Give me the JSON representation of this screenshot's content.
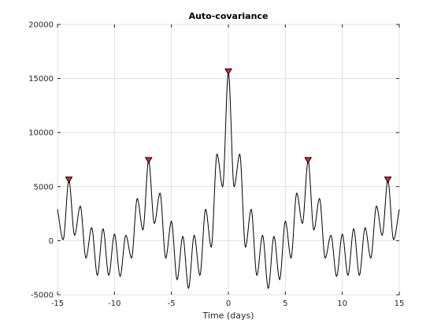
{
  "chart_data": {
    "type": "line",
    "title": "Auto-covariance",
    "xlabel": "Time (days)",
    "ylabel": "",
    "xlim": [
      -15,
      15
    ],
    "ylim": [
      -5000,
      20000
    ],
    "x_ticks": [
      -15,
      -10,
      -5,
      0,
      5,
      10,
      15
    ],
    "y_ticks": [
      -5000,
      0,
      5000,
      10000,
      15000,
      20000
    ],
    "x_tick_labels": [
      "-15",
      "-10",
      "-5",
      "0",
      "5",
      "10",
      "15"
    ],
    "y_tick_labels": [
      "-5000",
      "0",
      "5000",
      "10000",
      "15000",
      "20000"
    ],
    "grid": true,
    "series": [
      {
        "color": "#000000",
        "points": [
          [
            -15,
            2900
          ],
          [
            -14.5,
            100
          ],
          [
            -14,
            5600
          ],
          [
            -13.5,
            500
          ],
          [
            -13,
            3200
          ],
          [
            -12.5,
            -1600
          ],
          [
            -12,
            1200
          ],
          [
            -11.5,
            -3200
          ],
          [
            -11,
            1100
          ],
          [
            -10.5,
            -3200
          ],
          [
            -10,
            600
          ],
          [
            -9.5,
            -3300
          ],
          [
            -9,
            500
          ],
          [
            -8.5,
            -1600
          ],
          [
            -8,
            3900
          ],
          [
            -7.5,
            1000
          ],
          [
            -7,
            7400
          ],
          [
            -6.5,
            1600
          ],
          [
            -6,
            4400
          ],
          [
            -5.5,
            -1600
          ],
          [
            -5,
            1800
          ],
          [
            -4.5,
            -3600
          ],
          [
            -4,
            400
          ],
          [
            -3.5,
            -4400
          ],
          [
            -3,
            500
          ],
          [
            -2.5,
            -3200
          ],
          [
            -2,
            2900
          ],
          [
            -1.5,
            -600
          ],
          [
            -1,
            8000
          ],
          [
            -0.5,
            5000
          ],
          [
            0,
            15600
          ],
          [
            0.5,
            5000
          ],
          [
            1,
            8000
          ],
          [
            1.5,
            -600
          ],
          [
            2,
            2900
          ],
          [
            2.5,
            -3200
          ],
          [
            3,
            500
          ],
          [
            3.5,
            -4400
          ],
          [
            4,
            400
          ],
          [
            4.5,
            -3600
          ],
          [
            5,
            1800
          ],
          [
            5.5,
            -1600
          ],
          [
            6,
            4400
          ],
          [
            6.5,
            1600
          ],
          [
            7,
            7400
          ],
          [
            7.5,
            1000
          ],
          [
            8,
            3900
          ],
          [
            8.5,
            -1600
          ],
          [
            9,
            500
          ],
          [
            9.5,
            -3300
          ],
          [
            10,
            600
          ],
          [
            10.5,
            -3200
          ],
          [
            11,
            1100
          ],
          [
            11.5,
            -3200
          ],
          [
            12,
            1200
          ],
          [
            12.5,
            -1600
          ],
          [
            13,
            3200
          ],
          [
            13.5,
            500
          ],
          [
            14,
            5600
          ],
          [
            14.5,
            100
          ],
          [
            15,
            2900
          ]
        ]
      }
    ],
    "peaks": {
      "color": "#e8262a",
      "points": [
        [
          -14,
          5600
        ],
        [
          -7,
          7400
        ],
        [
          0,
          15600
        ],
        [
          7,
          7400
        ],
        [
          14,
          5600
        ]
      ]
    }
  }
}
